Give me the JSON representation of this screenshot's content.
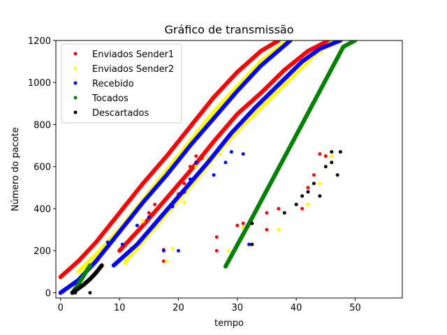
{
  "chart_data": {
    "type": "scatter",
    "title": "Gráfico de transmissão",
    "xlabel": "tempo",
    "ylabel": "Número do pacote",
    "xlim": [
      -0.8,
      58
    ],
    "ylim": [
      -25,
      1200
    ],
    "xticks": [
      0,
      10,
      20,
      30,
      40,
      50
    ],
    "yticks": [
      0,
      200,
      400,
      600,
      800,
      1000,
      1200
    ],
    "grid": false,
    "legend_position": "top-left",
    "series": [
      {
        "name": "Enviados Sender1",
        "color": "#ff0000",
        "trends": [
          {
            "x": [
              0,
              3,
              6,
              10,
              14,
              18,
              22,
              26,
              30,
              34,
              37
            ],
            "y": [
              75,
              150,
              240,
              380,
              520,
              650,
              790,
              930,
              1050,
              1150,
              1200
            ]
          },
          {
            "x": [
              10,
              14,
              18,
              22,
              26,
              30,
              34,
              38,
              42,
              45.5
            ],
            "y": [
              200,
              320,
              450,
              580,
              720,
              850,
              950,
              1060,
              1150,
              1200
            ]
          }
        ],
        "points": [
          [
            12,
            210
          ],
          [
            15,
            380
          ],
          [
            16,
            420
          ],
          [
            17.5,
            150
          ],
          [
            17.5,
            205
          ],
          [
            18,
            450
          ],
          [
            19,
            480
          ],
          [
            20,
            470
          ],
          [
            21,
            520
          ],
          [
            22,
            600
          ],
          [
            23,
            650
          ],
          [
            24,
            640
          ],
          [
            26.5,
            200
          ],
          [
            26.5,
            265
          ],
          [
            30,
            320
          ],
          [
            31,
            330
          ],
          [
            35,
            300
          ],
          [
            35,
            380
          ],
          [
            37,
            400
          ],
          [
            41,
            400
          ],
          [
            42,
            500
          ],
          [
            43,
            560
          ],
          [
            44,
            660
          ],
          [
            45,
            650
          ]
        ]
      },
      {
        "name": "Enviados Sender2",
        "color": "#ffff00",
        "trends": [
          {
            "x": [
              3,
              6,
              10,
              14,
              18,
              22,
              26,
              30,
              34,
              38.5
            ],
            "y": [
              100,
              180,
              300,
              440,
              580,
              720,
              860,
              980,
              1100,
              1200
            ]
          },
          {
            "x": [
              11,
              15,
              19,
              23,
              27,
              31,
              35,
              39,
              43,
              46.5
            ],
            "y": [
              150,
              280,
              410,
              540,
              680,
              800,
              910,
              1020,
              1130,
              1200
            ]
          }
        ],
        "points": [
          [
            11,
            140
          ],
          [
            14,
            340
          ],
          [
            18,
            150
          ],
          [
            19,
            210
          ],
          [
            21,
            430
          ],
          [
            23,
            600
          ],
          [
            25,
            640
          ],
          [
            27,
            660
          ],
          [
            28.5,
            200
          ],
          [
            31,
            310
          ],
          [
            37,
            300
          ],
          [
            38,
            380
          ],
          [
            42,
            420
          ],
          [
            44,
            520
          ],
          [
            45,
            600
          ],
          [
            46,
            650
          ]
        ]
      },
      {
        "name": "Recebido",
        "color": "#0000ff",
        "trends": [
          {
            "x": [
              0,
              3,
              6,
              10,
              14,
              18,
              22,
              26,
              30,
              34,
              39
            ],
            "y": [
              0,
              60,
              150,
              290,
              430,
              560,
              700,
              830,
              960,
              1080,
              1200
            ]
          },
          {
            "x": [
              9,
              13,
              17,
              21,
              25,
              29,
              33,
              37,
              41,
              44,
              47.5
            ],
            "y": [
              130,
              230,
              360,
              490,
              620,
              760,
              880,
              990,
              1100,
              1160,
              1200
            ]
          }
        ],
        "points": [
          [
            8,
            240
          ],
          [
            10.5,
            230
          ],
          [
            13,
            320
          ],
          [
            15,
            360
          ],
          [
            17.5,
            200
          ],
          [
            19,
            410
          ],
          [
            20,
            200
          ],
          [
            21,
            480
          ],
          [
            22,
            540
          ],
          [
            23,
            620
          ],
          [
            26,
            560
          ],
          [
            28,
            620
          ],
          [
            29,
            670
          ],
          [
            31,
            660
          ],
          [
            32,
            230
          ]
        ]
      },
      {
        "name": "Tocados",
        "color": "#008000",
        "trends": [
          {
            "x": [
              2,
              3,
              4,
              5
            ],
            "y": [
              0,
              40,
              85,
              130
            ]
          },
          {
            "x": [
              28,
              32,
              36,
              40,
              44,
              48,
              50
            ],
            "y": [
              125,
              330,
              540,
              750,
              960,
              1170,
              1200
            ]
          }
        ],
        "points": []
      },
      {
        "name": "Descartados",
        "color": "#000000",
        "trends": [
          {
            "x": [
              2,
              3,
              4,
              5,
              6,
              7
            ],
            "y": [
              0,
              20,
              40,
              65,
              95,
              130
            ]
          }
        ],
        "points": [
          [
            2.5,
            0
          ],
          [
            5,
            0
          ],
          [
            32.5,
            330
          ],
          [
            32.5,
            230
          ],
          [
            38,
            380
          ],
          [
            40,
            420
          ],
          [
            41,
            460
          ],
          [
            42,
            480
          ],
          [
            43,
            520
          ],
          [
            44,
            460
          ],
          [
            45,
            600
          ],
          [
            46,
            620
          ],
          [
            47,
            560
          ],
          [
            46,
            670
          ],
          [
            47.5,
            670
          ]
        ]
      }
    ]
  }
}
